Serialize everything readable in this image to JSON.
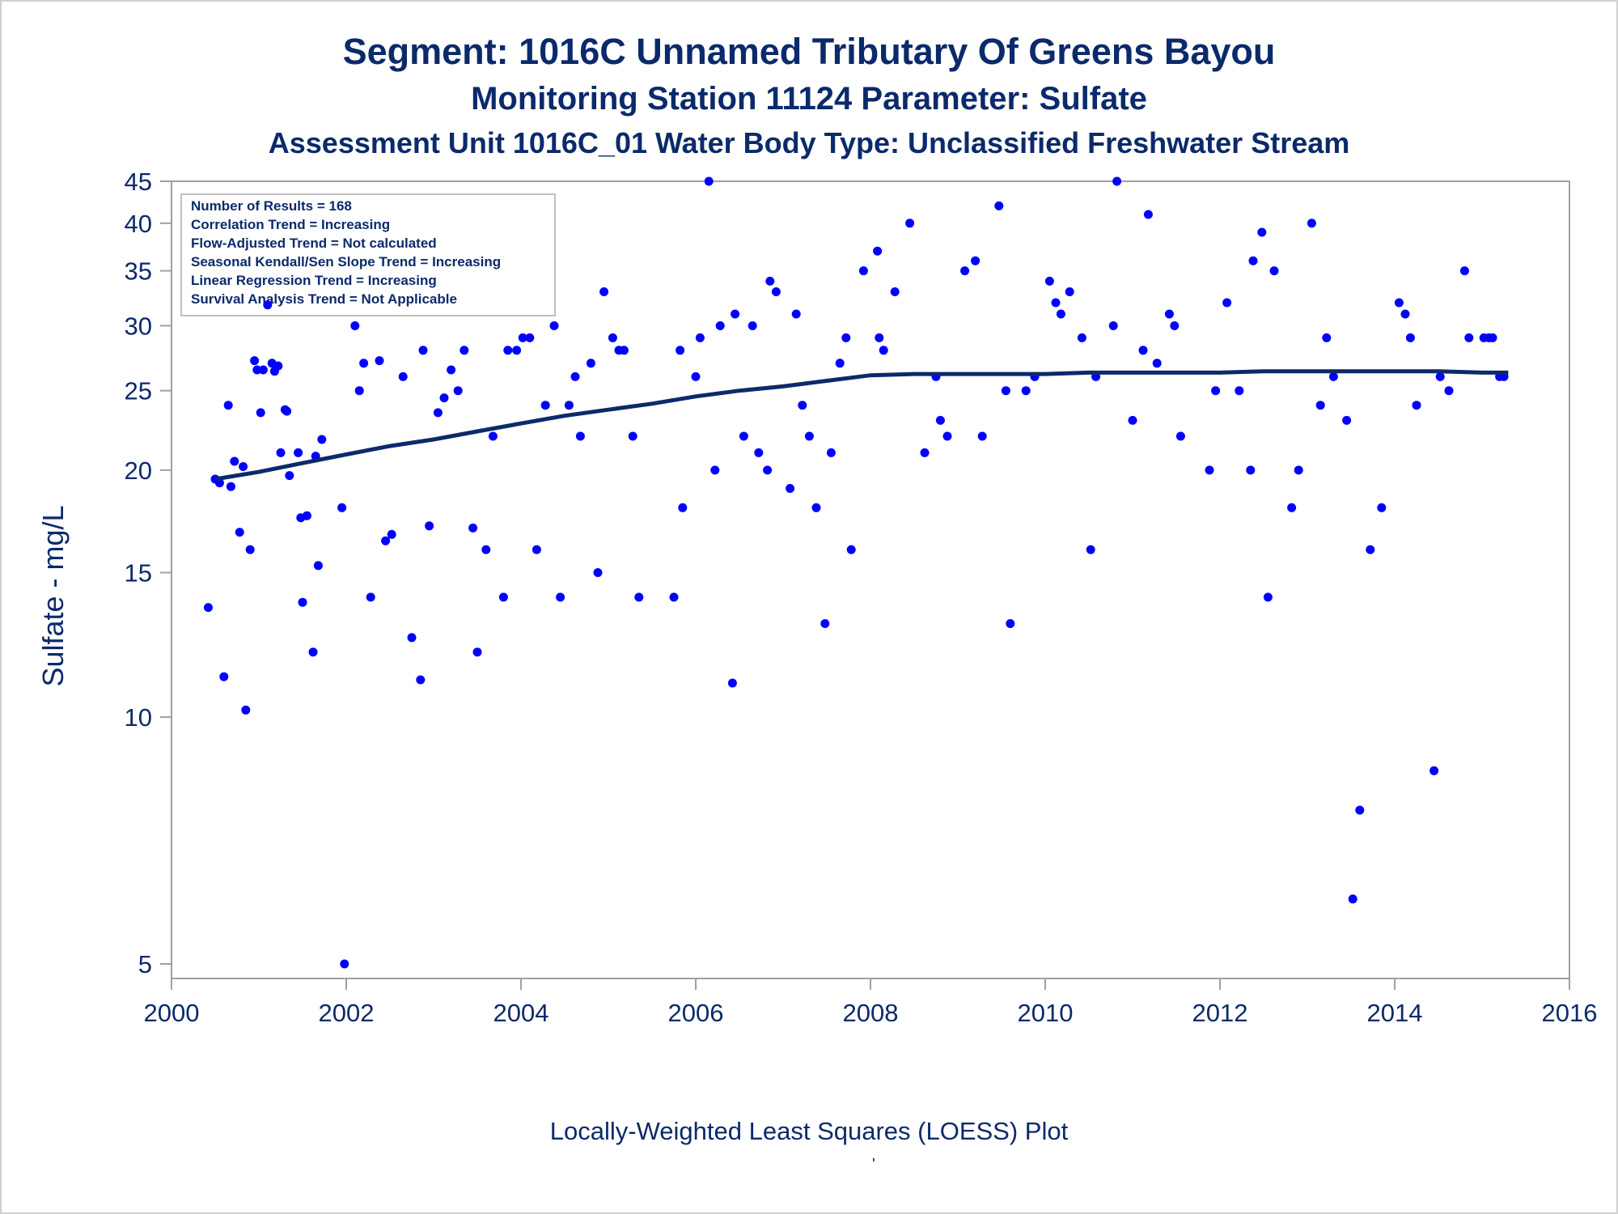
{
  "titles": {
    "line1": "Segment: 1016C  Unnamed Tributary Of Greens Bayou",
    "line2": "Monitoring Station 11124 Parameter: Sulfate",
    "line3": "Assessment Unit 1016C_01   Water Body Type: Unclassified Freshwater Stream"
  },
  "footnote": "Locally-Weighted Least Squares (LOESS) Plot",
  "footnote_mark": "'",
  "stats_box": [
    "Number of Results = 168",
    "Correlation Trend = Increasing",
    "Flow-Adjusted Trend = Not calculated",
    "Seasonal Kendall/Sen Slope Trend = Increasing",
    "Linear Regression Trend = Increasing",
    "Survival Analysis Trend = Not Applicable"
  ],
  "colors": {
    "text": "#0b2a6b",
    "points": "#0000ff",
    "loess_line": "#0b2a6b",
    "axis": "#a0a0a0"
  },
  "chart_data": {
    "type": "scatter",
    "xlabel": "",
    "ylabel": "Sulfate - mg/L",
    "xlim": [
      2000,
      2016
    ],
    "ylim": [
      4.8,
      45
    ],
    "yscale": "log",
    "x_ticks": [
      2000,
      2002,
      2004,
      2006,
      2008,
      2010,
      2012,
      2014,
      2016
    ],
    "y_ticks": [
      5,
      10,
      15,
      20,
      25,
      30,
      35,
      40,
      45
    ],
    "grid": false,
    "series": [
      {
        "type": "scatter",
        "points": [
          [
            2000.42,
            13.6
          ],
          [
            2000.5,
            19.5
          ],
          [
            2000.55,
            19.3
          ],
          [
            2000.6,
            11.2
          ],
          [
            2000.65,
            24
          ],
          [
            2000.68,
            19.1
          ],
          [
            2000.72,
            20.5
          ],
          [
            2000.78,
            16.8
          ],
          [
            2000.82,
            20.2
          ],
          [
            2000.85,
            10.2
          ],
          [
            2000.9,
            16
          ],
          [
            2000.95,
            27.2
          ],
          [
            2000.98,
            26.5
          ],
          [
            2001.02,
            23.5
          ],
          [
            2001.05,
            26.5
          ],
          [
            2001.1,
            31.8
          ],
          [
            2001.15,
            27
          ],
          [
            2001.18,
            26.4
          ],
          [
            2001.22,
            26.8
          ],
          [
            2001.25,
            21
          ],
          [
            2001.3,
            23.7
          ],
          [
            2001.32,
            23.6
          ],
          [
            2001.35,
            19.7
          ],
          [
            2001.45,
            21
          ],
          [
            2001.48,
            17.5
          ],
          [
            2001.5,
            13.8
          ],
          [
            2001.55,
            17.6
          ],
          [
            2001.62,
            12
          ],
          [
            2001.65,
            20.8
          ],
          [
            2001.68,
            15.3
          ],
          [
            2001.72,
            21.8
          ],
          [
            2001.95,
            18
          ],
          [
            2001.98,
            5
          ],
          [
            2002.1,
            30
          ],
          [
            2002.15,
            25
          ],
          [
            2002.2,
            27
          ],
          [
            2002.28,
            14
          ],
          [
            2002.38,
            27.2
          ],
          [
            2002.45,
            16.4
          ],
          [
            2002.52,
            16.7
          ],
          [
            2002.65,
            26
          ],
          [
            2002.75,
            12.5
          ],
          [
            2002.85,
            11.1
          ],
          [
            2002.88,
            28
          ],
          [
            2002.95,
            17.1
          ],
          [
            2003.05,
            23.5
          ],
          [
            2003.12,
            24.5
          ],
          [
            2003.2,
            26.5
          ],
          [
            2003.28,
            25
          ],
          [
            2003.35,
            28
          ],
          [
            2003.45,
            17
          ],
          [
            2003.5,
            12
          ],
          [
            2003.6,
            16
          ],
          [
            2003.68,
            22
          ],
          [
            2003.8,
            14
          ],
          [
            2003.85,
            28
          ],
          [
            2003.95,
            28
          ],
          [
            2004.02,
            29
          ],
          [
            2004.1,
            29
          ],
          [
            2004.18,
            16
          ],
          [
            2004.28,
            24
          ],
          [
            2004.38,
            30
          ],
          [
            2004.45,
            14
          ],
          [
            2004.55,
            24
          ],
          [
            2004.62,
            26
          ],
          [
            2004.68,
            22
          ],
          [
            2004.8,
            27
          ],
          [
            2004.88,
            15
          ],
          [
            2004.95,
            33
          ],
          [
            2005.05,
            29
          ],
          [
            2005.12,
            28
          ],
          [
            2005.18,
            28
          ],
          [
            2005.28,
            22
          ],
          [
            2005.35,
            14
          ],
          [
            2005.75,
            14
          ],
          [
            2005.82,
            28
          ],
          [
            2005.85,
            18
          ],
          [
            2006.0,
            26
          ],
          [
            2006.05,
            29
          ],
          [
            2006.15,
            45
          ],
          [
            2006.22,
            20
          ],
          [
            2006.28,
            30
          ],
          [
            2006.42,
            11
          ],
          [
            2006.45,
            31
          ],
          [
            2006.55,
            22
          ],
          [
            2006.65,
            30
          ],
          [
            2006.72,
            21
          ],
          [
            2006.82,
            20
          ],
          [
            2006.85,
            34
          ],
          [
            2006.92,
            33
          ],
          [
            2007.08,
            19
          ],
          [
            2007.15,
            31
          ],
          [
            2007.22,
            24
          ],
          [
            2007.3,
            22
          ],
          [
            2007.38,
            18
          ],
          [
            2007.48,
            13
          ],
          [
            2007.55,
            21
          ],
          [
            2007.65,
            27
          ],
          [
            2007.72,
            29
          ],
          [
            2007.78,
            16
          ],
          [
            2007.92,
            35
          ],
          [
            2008.08,
            37
          ],
          [
            2008.1,
            29
          ],
          [
            2008.15,
            28
          ],
          [
            2008.28,
            33
          ],
          [
            2008.45,
            40
          ],
          [
            2008.62,
            21
          ],
          [
            2008.75,
            26
          ],
          [
            2008.8,
            23
          ],
          [
            2008.88,
            22
          ],
          [
            2009.08,
            35
          ],
          [
            2009.2,
            36
          ],
          [
            2009.28,
            22
          ],
          [
            2009.47,
            42
          ],
          [
            2009.55,
            25
          ],
          [
            2009.6,
            13
          ],
          [
            2009.78,
            25
          ],
          [
            2009.88,
            26
          ],
          [
            2010.05,
            34
          ],
          [
            2010.12,
            32
          ],
          [
            2010.18,
            31
          ],
          [
            2010.28,
            33
          ],
          [
            2010.42,
            29
          ],
          [
            2010.52,
            16
          ],
          [
            2010.58,
            26
          ],
          [
            2010.78,
            30
          ],
          [
            2010.82,
            45
          ],
          [
            2011.0,
            23
          ],
          [
            2011.12,
            28
          ],
          [
            2011.18,
            41
          ],
          [
            2011.28,
            27
          ],
          [
            2011.42,
            31
          ],
          [
            2011.48,
            30
          ],
          [
            2011.55,
            22
          ],
          [
            2011.88,
            20
          ],
          [
            2011.95,
            25
          ],
          [
            2012.08,
            32
          ],
          [
            2012.22,
            25
          ],
          [
            2012.35,
            20
          ],
          [
            2012.38,
            36
          ],
          [
            2012.48,
            39
          ],
          [
            2012.55,
            14
          ],
          [
            2012.62,
            35
          ],
          [
            2012.82,
            18
          ],
          [
            2012.9,
            20
          ],
          [
            2013.05,
            40
          ],
          [
            2013.15,
            24
          ],
          [
            2013.22,
            29
          ],
          [
            2013.3,
            26
          ],
          [
            2013.45,
            23
          ],
          [
            2013.52,
            6
          ],
          [
            2013.6,
            7.7
          ],
          [
            2013.72,
            16
          ],
          [
            2013.85,
            18
          ],
          [
            2014.05,
            32
          ],
          [
            2014.12,
            31
          ],
          [
            2014.18,
            29
          ],
          [
            2014.25,
            24
          ],
          [
            2014.45,
            8.6
          ],
          [
            2014.52,
            26
          ],
          [
            2014.62,
            25
          ],
          [
            2014.8,
            35
          ],
          [
            2014.85,
            29
          ],
          [
            2015.02,
            29
          ],
          [
            2015.08,
            29
          ],
          [
            2015.12,
            29
          ],
          [
            2015.2,
            26
          ],
          [
            2015.25,
            26
          ]
        ]
      },
      {
        "type": "line",
        "points": [
          [
            2000.5,
            19.5
          ],
          [
            2001,
            19.9
          ],
          [
            2001.5,
            20.4
          ],
          [
            2002,
            20.9
          ],
          [
            2002.5,
            21.4
          ],
          [
            2003,
            21.8
          ],
          [
            2003.5,
            22.3
          ],
          [
            2004,
            22.8
          ],
          [
            2004.5,
            23.3
          ],
          [
            2005,
            23.7
          ],
          [
            2005.5,
            24.1
          ],
          [
            2006,
            24.6
          ],
          [
            2006.5,
            25
          ],
          [
            2007,
            25.3
          ],
          [
            2007.5,
            25.7
          ],
          [
            2008,
            26.1
          ],
          [
            2008.5,
            26.2
          ],
          [
            2009,
            26.2
          ],
          [
            2009.5,
            26.2
          ],
          [
            2010,
            26.2
          ],
          [
            2010.5,
            26.3
          ],
          [
            2011,
            26.3
          ],
          [
            2011.5,
            26.3
          ],
          [
            2012,
            26.3
          ],
          [
            2012.5,
            26.4
          ],
          [
            2013,
            26.4
          ],
          [
            2013.5,
            26.4
          ],
          [
            2014,
            26.4
          ],
          [
            2014.5,
            26.4
          ],
          [
            2015,
            26.3
          ],
          [
            2015.3,
            26.3
          ]
        ]
      }
    ]
  }
}
